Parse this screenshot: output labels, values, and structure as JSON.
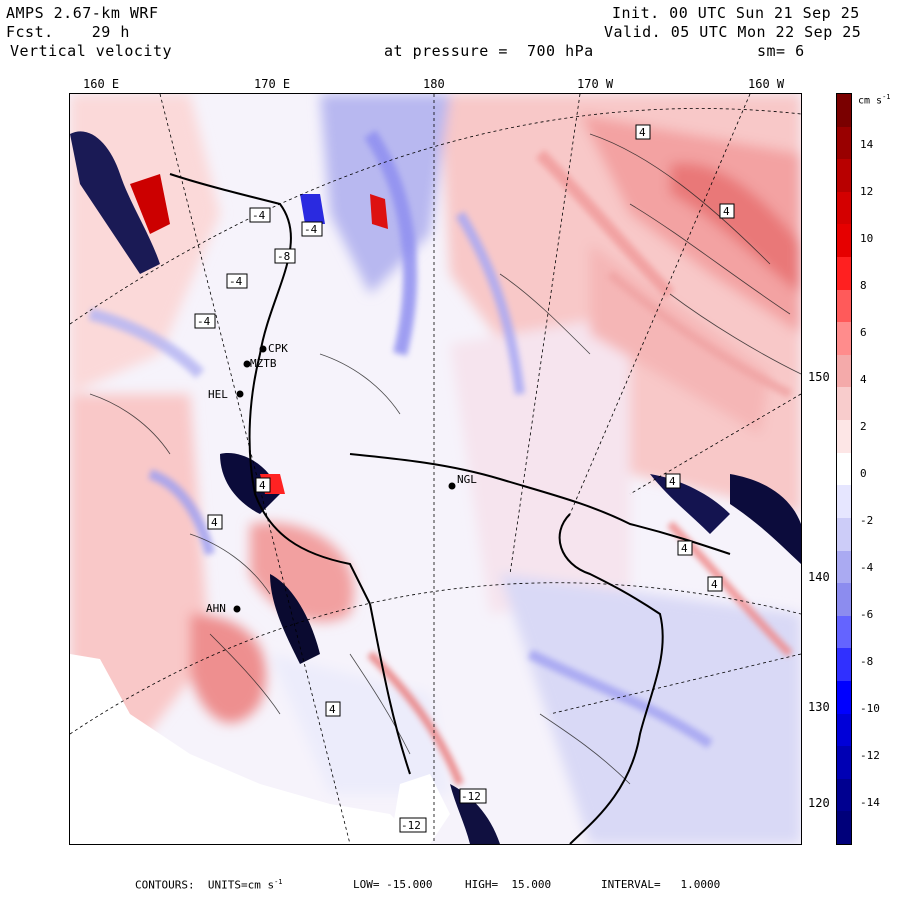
{
  "header": {
    "model": "AMPS 2.67-km WRF",
    "fcst_label": "Fcst.",
    "fcst_value": "29 h",
    "field": "Vertical velocity",
    "init": "Init. 00 UTC Sun 21 Sep 25",
    "valid": "Valid. 05 UTC Mon 22 Sep 25",
    "level": "at pressure =  700 hPa",
    "smooth": "sm= 6"
  },
  "lon_labels": [
    "160 E",
    "170 E",
    "180",
    "170 W",
    "160 W"
  ],
  "lat_labels": [
    "150 W",
    "140 W",
    "130 W",
    "120 W"
  ],
  "stations": [
    "CPK",
    "MZTB",
    "HEL",
    "NGL",
    "AHN"
  ],
  "contour_box_labels": [
    "4",
    "4",
    "-4",
    "-4",
    "-4",
    "-4",
    "-8",
    "4",
    "4",
    "4",
    "4",
    "4",
    "4",
    "-12",
    "-12"
  ],
  "colorbar": {
    "units": "cm s",
    "units_exp": "-1",
    "ticks": [
      "14",
      "12",
      "10",
      "8",
      "6",
      "4",
      "2",
      "0",
      "-2",
      "-4",
      "-6",
      "-8",
      "-10",
      "-12",
      "-14"
    ],
    "colors": [
      "#7a0000",
      "#990000",
      "#b80000",
      "#d40000",
      "#e60000",
      "#ff2020",
      "#ff5a5a",
      "#ff8c8c",
      "#f4aaaa",
      "#f8cccc",
      "#fde6e6",
      "#ffffff",
      "#e6e6ff",
      "#ccccf8",
      "#aaaaf2",
      "#8c8cef",
      "#6464ff",
      "#3030ff",
      "#0000ff",
      "#0000d8",
      "#0000b4",
      "#000090",
      "#00007a"
    ]
  },
  "footer": {
    "contours": "CONTOURS:  UNITS=cm s",
    "exp": "-1",
    "low": "LOW= -15.000",
    "high": "HIGH=  15.000",
    "interval": "INTERVAL=   1.0000"
  }
}
